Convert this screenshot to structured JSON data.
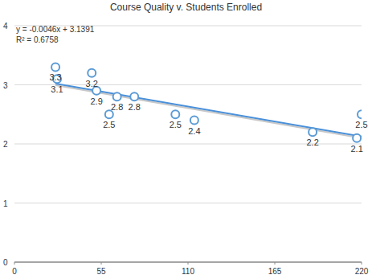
{
  "chart_data": {
    "type": "scatter",
    "title": "Course Quality v. Students Enrolled",
    "x": [
      26,
      27,
      49,
      52,
      60,
      65,
      76,
      102,
      114,
      189,
      217,
      220
    ],
    "values": [
      3.3,
      3.1,
      3.2,
      2.9,
      2.5,
      2.8,
      2.8,
      2.5,
      2.4,
      2.2,
      2.1,
      2.5
    ],
    "color": "#5b9bd5",
    "marker": "circle",
    "data_labels": true,
    "xlim": [
      0,
      220
    ],
    "xticks": [
      0,
      55,
      110,
      165,
      220
    ],
    "ylim": [
      0,
      4
    ],
    "yticks": [
      0,
      1,
      2,
      3,
      4
    ],
    "grid": true,
    "trendline": {
      "slope": -0.0046,
      "intercept": 3.1391
    },
    "annotations": [
      "y = -0.0046x + 3.1391",
      "R² = 0.6758"
    ]
  }
}
